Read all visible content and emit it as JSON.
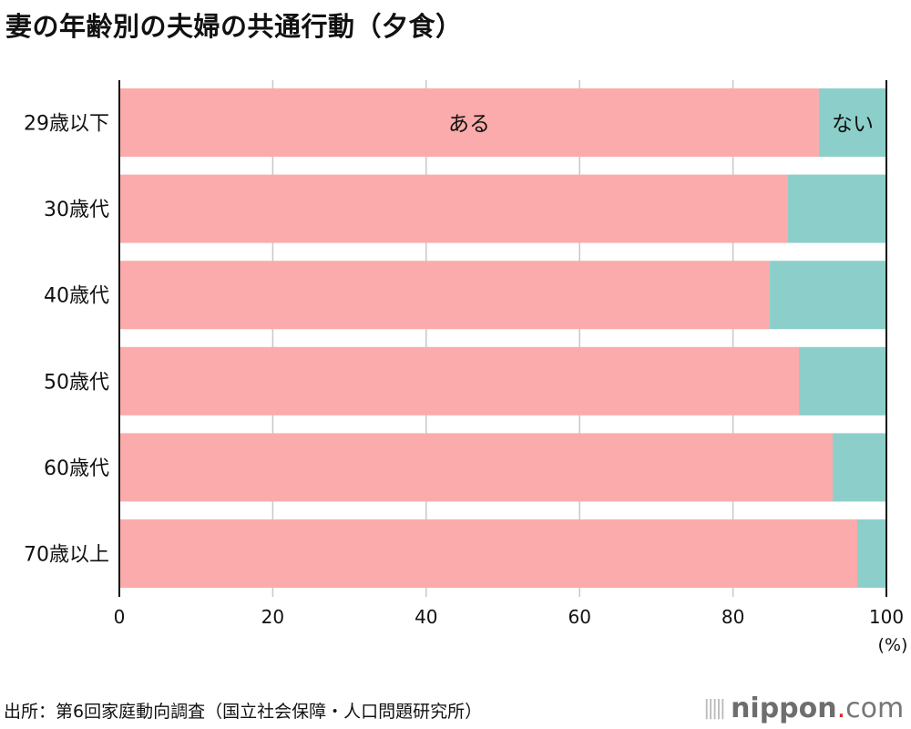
{
  "title": "妻の年齢別の夫婦の共通行動（夕食）",
  "source": "出所：第6回家庭動向調査（国立社会保障・人口問題研究所）",
  "logo": {
    "main": "nippon",
    "dot": ".",
    "suffix": "com"
  },
  "chart_data": {
    "type": "bar",
    "orientation": "horizontal",
    "stacked": true,
    "title": "妻の年齢別の夫婦の共通行動（夕食）",
    "categories": [
      "29歳以下",
      "30歳代",
      "40歳代",
      "50歳代",
      "60歳代",
      "70歳以上"
    ],
    "series": [
      {
        "name": "ある",
        "color": "#fbabab",
        "values": [
          91.2,
          87.1,
          84.8,
          88.6,
          93.0,
          96.2
        ]
      },
      {
        "name": "ない",
        "color": "#8ccfca",
        "values": [
          8.8,
          12.9,
          15.2,
          11.4,
          7.0,
          3.8
        ]
      }
    ],
    "xlim": [
      0,
      100
    ],
    "xticks": [
      "0",
      "20",
      "40",
      "60",
      "80",
      "100"
    ],
    "xunit": "(%)",
    "grid": true,
    "legend": "inline-labels-on-first-bar"
  }
}
